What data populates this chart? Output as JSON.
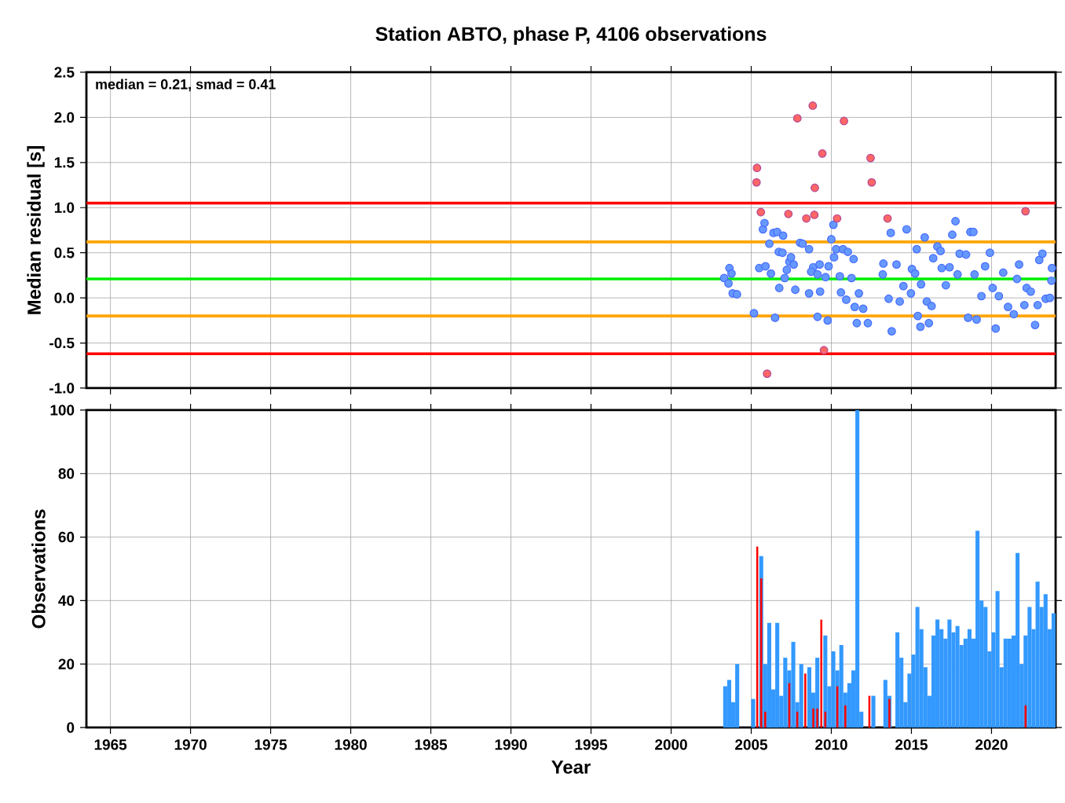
{
  "chart_data": [
    {
      "type": "scatter",
      "title": "Station ABTO, phase P, 4106 observations",
      "ylabel": "Median residual [s]",
      "annotations": [
        "median = 0.21, smad = 0.41"
      ],
      "xlim": [
        1963.5,
        2024
      ],
      "xticks": [
        1965,
        1970,
        1975,
        1980,
        1985,
        1990,
        1995,
        2000,
        2005,
        2010,
        2015,
        2020
      ],
      "ylim": [
        -1,
        2.5
      ],
      "yticks": [
        {
          "value": -1,
          "label": "-1.0"
        },
        -0.5,
        {
          "value": 0,
          "label": "0.0"
        },
        0.5,
        {
          "value": 1,
          "label": "1.0"
        },
        1.5,
        {
          "value": 2,
          "label": "2.0"
        },
        2.5
      ],
      "tick_labels": "y",
      "grid": true,
      "marker": "circle",
      "ref_lines": [
        {
          "axis": "y",
          "value": 1.05,
          "color": "#ff0000"
        },
        {
          "axis": "y",
          "value": 0.62,
          "color": "#ffa500"
        },
        {
          "axis": "y",
          "value": 0.21,
          "color": "#00ee00"
        },
        {
          "axis": "y",
          "value": -0.2,
          "color": "#ffa500"
        },
        {
          "axis": "y",
          "value": -0.62,
          "color": "#ff0000"
        }
      ],
      "series": [
        {
          "color": "#6699ff",
          "x": [
            2003.31,
            2003.64,
            2003.77,
            2003.58,
            2003.84,
            2004.11,
            2005.17,
            2005.5,
            2005.89,
            2005.73,
            2005.83,
            2006.23,
            2006.49,
            2006.13,
            2006.39,
            2006.62,
            2006.99,
            2006.72,
            2006.95,
            2006.75,
            2007.09,
            2007.22,
            2007.38,
            2007.65,
            2007.48,
            2007.75,
            2008.05,
            2008.21,
            2008.61,
            2008.61,
            2008.87,
            2008.74,
            2009.14,
            2009.27,
            2009.3,
            2009.14,
            2009.64,
            2009.77,
            2009.83,
            2010.0,
            2010.13,
            2010.3,
            2010.17,
            2010.53,
            2010.6,
            2010.73,
            2010.93,
            2011.03,
            2011.39,
            2011.26,
            2011.46,
            2011.72,
            2011.59,
            2011.99,
            2012.28,
            2013.25,
            2013.21,
            2013.71,
            2013.58,
            2013.77,
            2014.07,
            2014.27,
            2014.5,
            2014.7,
            2014.97,
            2015.03,
            2015.33,
            2015.23,
            2015.4,
            2015.56,
            2015.6,
            2015.83,
            2015.96,
            2016.09,
            2016.26,
            2016.36,
            2016.62,
            2016.82,
            2016.89,
            2017.15,
            2017.38,
            2017.55,
            2017.75,
            2017.88,
            2018.01,
            2018.41,
            2018.54,
            2018.68,
            2018.87,
            2018.94,
            2019.07,
            2019.37,
            2019.6,
            2019.9,
            2020.07,
            2020.26,
            2020.46,
            2020.73,
            2021.03,
            2021.39,
            2021.59,
            2021.72,
            2022.05,
            2022.19,
            2022.45,
            2022.72,
            2022.88,
            2022.98,
            2023.18,
            2023.38,
            2023.64,
            2023.77,
            2023.74
          ],
          "values": [
            0.22,
            0.33,
            0.27,
            0.16,
            0.05,
            0.04,
            -0.17,
            0.33,
            0.35,
            0.76,
            0.83,
            0.27,
            -0.22,
            0.6,
            0.72,
            0.73,
            0.69,
            0.51,
            0.5,
            0.11,
            0.22,
            0.31,
            0.4,
            0.37,
            0.45,
            0.09,
            0.61,
            0.6,
            0.54,
            0.05,
            0.34,
            0.29,
            -0.21,
            0.37,
            0.07,
            0.26,
            0.23,
            -0.25,
            0.35,
            0.65,
            0.81,
            0.54,
            0.45,
            0.24,
            0.06,
            0.54,
            -0.02,
            0.51,
            0.43,
            0.22,
            -0.1,
            0.05,
            -0.28,
            -0.12,
            -0.28,
            0.38,
            0.26,
            0.72,
            -0.01,
            -0.37,
            0.37,
            -0.04,
            0.13,
            0.76,
            0.05,
            0.32,
            0.54,
            0.27,
            -0.2,
            -0.32,
            0.15,
            0.67,
            -0.04,
            -0.28,
            -0.09,
            0.44,
            0.57,
            0.52,
            0.33,
            0.14,
            0.34,
            0.7,
            0.85,
            0.26,
            0.49,
            0.48,
            -0.22,
            0.73,
            0.73,
            0.26,
            -0.24,
            0.02,
            0.35,
            0.5,
            0.11,
            -0.34,
            0.02,
            0.28,
            -0.1,
            -0.18,
            0.21,
            0.37,
            -0.08,
            0.11,
            0.07,
            -0.3,
            -0.08,
            0.42,
            0.49,
            -0.01,
            0.0,
            0.33,
            0.19
          ]
        },
        {
          "color": "#ff6666",
          "x": [
            2005.36,
            2005.33,
            2005.6,
            2007.32,
            2007.88,
            2008.44,
            2008.84,
            2008.94,
            2008.97,
            2009.44,
            2010.36,
            2010.79,
            2012.45,
            2012.52,
            2013.51,
            2022.12,
            2009.54,
            2005.99
          ],
          "values": [
            1.44,
            1.28,
            0.95,
            0.93,
            1.99,
            0.88,
            2.13,
            0.92,
            1.22,
            1.6,
            0.88,
            1.96,
            1.55,
            1.28,
            0.88,
            0.96,
            -0.58,
            -0.84
          ]
        }
      ]
    },
    {
      "type": "histogram",
      "xlabel": "Year",
      "ylabel": "Observations",
      "bins": [
        2003.25,
        2003.5,
        2003.75,
        2004,
        2004.25,
        2004.5,
        2004.75,
        2005,
        2005.25,
        2005.5,
        2005.75,
        2006,
        2006.25,
        2006.5,
        2006.75,
        2007,
        2007.25,
        2007.5,
        2007.75,
        2008,
        2008.25,
        2008.5,
        2008.75,
        2009,
        2009.25,
        2009.5,
        2009.75,
        2010,
        2010.25,
        2010.5,
        2010.75,
        2011,
        2011.25,
        2011.5,
        2011.75,
        2012,
        2012.25,
        2012.5,
        2012.75,
        2013,
        2013.25,
        2013.5,
        2013.75,
        2014,
        2014.25,
        2014.5,
        2014.75,
        2015,
        2015.25,
        2015.5,
        2015.75,
        2016,
        2016.25,
        2016.5,
        2016.75,
        2017,
        2017.25,
        2017.5,
        2017.75,
        2018,
        2018.25,
        2018.5,
        2018.75,
        2019,
        2019.25,
        2019.5,
        2019.75,
        2020,
        2020.25,
        2020.5,
        2020.75,
        2021,
        2021.25,
        2021.5,
        2021.75,
        2022,
        2022.25,
        2022.5,
        2022.75,
        2023,
        2023.25,
        2023.5,
        2023.75,
        2024
      ],
      "xlim": [
        1963.5,
        2024
      ],
      "xticks": [
        1965,
        1970,
        1975,
        1980,
        1985,
        1990,
        1995,
        2000,
        2005,
        2010,
        2015,
        2020
      ],
      "ylim": [
        0,
        100
      ],
      "yticks": [
        0,
        20,
        40,
        60,
        80,
        100
      ],
      "grid": true,
      "series": [
        {
          "color": "#3399ff",
          "values": [
            13,
            15,
            8,
            20,
            null,
            null,
            null,
            9,
            null,
            54,
            20,
            33,
            12,
            33,
            10,
            22,
            18,
            27,
            8,
            20,
            null,
            19,
            11,
            22,
            null,
            29,
            13,
            24,
            18,
            26,
            11,
            14,
            18,
            100,
            5,
            null,
            null,
            10,
            null,
            null,
            15,
            10,
            null,
            30,
            22,
            8,
            17,
            23,
            38,
            31,
            19,
            10,
            29,
            34,
            31,
            28,
            34,
            30,
            32,
            26,
            28,
            31,
            28,
            62,
            40,
            38,
            24,
            30,
            43,
            19,
            28,
            28,
            29,
            55,
            20,
            29,
            38,
            31,
            46,
            38,
            42,
            31,
            36
          ]
        },
        {
          "color": "#ff0000",
          "values": [
            null,
            null,
            null,
            null,
            null,
            null,
            null,
            null,
            57,
            47,
            5,
            null,
            null,
            null,
            null,
            null,
            14,
            null,
            5,
            null,
            17,
            null,
            6,
            6,
            34,
            5,
            null,
            null,
            13,
            null,
            7,
            null,
            null,
            null,
            null,
            null,
            10,
            null,
            null,
            null,
            null,
            9,
            null,
            null,
            null,
            null,
            null,
            null,
            null,
            null,
            null,
            null,
            null,
            null,
            null,
            null,
            null,
            null,
            null,
            null,
            null,
            null,
            null,
            null,
            null,
            null,
            null,
            null,
            null,
            null,
            null,
            null,
            null,
            null,
            null,
            7,
            null,
            null,
            null,
            null,
            null,
            null,
            null
          ]
        }
      ]
    }
  ]
}
